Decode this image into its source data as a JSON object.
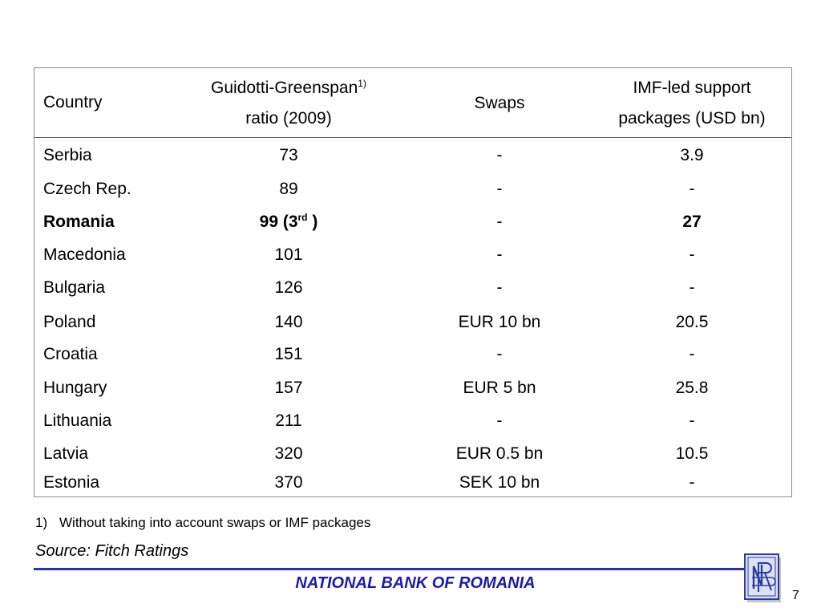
{
  "table": {
    "headers": {
      "country": "Country",
      "ratio_line1": "Guidotti-Greenspan",
      "ratio_sup": "1)",
      "ratio_line2": "ratio (2009)",
      "swaps": "Swaps",
      "imf_line1": "IMF-led support",
      "imf_line2": "packages (USD bn)"
    },
    "rows": [
      {
        "country": "Serbia",
        "ratio": "73",
        "swaps": "-",
        "imf": "3.9"
      },
      {
        "country": "Czech Rep.",
        "ratio": "89",
        "swaps": "-",
        "imf": "-"
      },
      {
        "country": "Romania",
        "ratio": "99 (3",
        "ratio_sup": "rd",
        "ratio_end": " )",
        "swaps": "-",
        "imf": "27"
      },
      {
        "country": "Macedonia",
        "ratio": "101",
        "swaps": "-",
        "imf": "-"
      },
      {
        "country": "Bulgaria",
        "ratio": "126",
        "swaps": "-",
        "imf": "-"
      },
      {
        "country": "Poland",
        "ratio": "140",
        "swaps": "EUR 10 bn",
        "imf": "20.5"
      },
      {
        "country": "Croatia",
        "ratio": "151",
        "swaps": "-",
        "imf": "-"
      },
      {
        "country": "Hungary",
        "ratio": "157",
        "swaps": "EUR 5 bn",
        "imf": "25.8"
      },
      {
        "country": "Lithuania",
        "ratio": "211",
        "swaps": "-",
        "imf": "-"
      },
      {
        "country": "Latvia",
        "ratio": "320",
        "swaps": "EUR 0.5 bn",
        "imf": "10.5"
      },
      {
        "country": "Estonia",
        "ratio": "370",
        "swaps": "SEK 10 bn",
        "imf": "-"
      }
    ]
  },
  "footnote": {
    "number": "1)",
    "text": "Without taking into account swaps or IMF packages"
  },
  "source": "Source: Fitch Ratings",
  "footer": {
    "bank_name": "NATIONAL BANK OF ROMANIA",
    "page_number": "7"
  },
  "colors": {
    "accent": "#2b2bc8",
    "bank_name": "#1a1ab0",
    "logo": "#2b3c9e"
  },
  "logo": {
    "icon": "nbr-monogram-icon"
  }
}
